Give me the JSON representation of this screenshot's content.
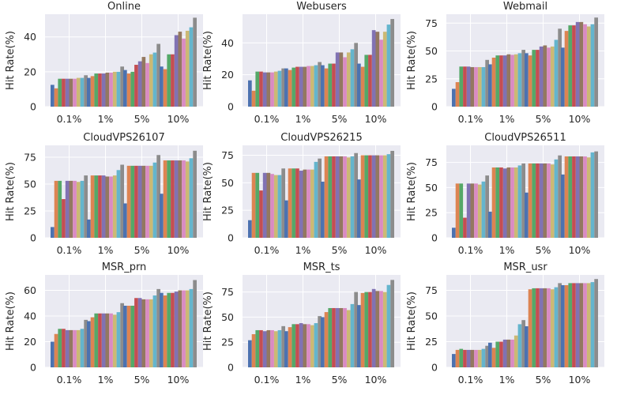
{
  "colors": [
    "#4c72b0",
    "#dd8452",
    "#55a868",
    "#c44e52",
    "#8172b3",
    "#937860",
    "#da8bc3",
    "#ccb974",
    "#64b5cd",
    "#8c8c8c"
  ],
  "chart_data": [
    {
      "type": "bar",
      "title": "Online",
      "ylabel": "Hit Rate(%)",
      "categories": [
        "0.1%",
        "1%",
        "5%",
        "10%"
      ],
      "ylim": [
        0,
        53
      ],
      "yticks": [
        0,
        20,
        40
      ],
      "grid": true,
      "values": [
        [
          12.5,
          10.5,
          16,
          16,
          16,
          16,
          16,
          16.5,
          16.5,
          18
        ],
        [
          16.5,
          17.5,
          19,
          19,
          19,
          19.5,
          19.5,
          20,
          20,
          23
        ],
        [
          21,
          19,
          20,
          24,
          26,
          28.5,
          25,
          30,
          31,
          36
        ],
        [
          23,
          21.5,
          30,
          30,
          41,
          43,
          39,
          43.5,
          45.5,
          51
        ]
      ]
    },
    {
      "type": "bar",
      "title": "Webusers",
      "ylabel": "Hit Rate(%)",
      "categories": [
        "0.1%",
        "1%",
        "5%",
        "10%"
      ],
      "ylim": [
        0,
        58
      ],
      "yticks": [
        0,
        20,
        40
      ],
      "grid": true,
      "values": [
        [
          16.5,
          10,
          22,
          22,
          21.5,
          21.5,
          21.5,
          22,
          22.5,
          24
        ],
        [
          24,
          23,
          24.5,
          25,
          25,
          25,
          25.5,
          25.5,
          26,
          28
        ],
        [
          26,
          24,
          27,
          27,
          34,
          34,
          31,
          34,
          36,
          40
        ],
        [
          27,
          25,
          32.5,
          32.5,
          48,
          47,
          42,
          47,
          51.5,
          55
        ]
      ]
    },
    {
      "type": "bar",
      "title": "Webmail",
      "ylabel": "Hit Rate(%)",
      "categories": [
        "0.1%",
        "1%",
        "5%",
        "10%"
      ],
      "ylim": [
        0,
        83
      ],
      "yticks": [
        0,
        25,
        50,
        75
      ],
      "grid": true,
      "values": [
        [
          16,
          22,
          36,
          36,
          36,
          35.5,
          35.5,
          35.5,
          35.5,
          42
        ],
        [
          38,
          44,
          46,
          46,
          46,
          47,
          46.5,
          47,
          48,
          51
        ],
        [
          48,
          46,
          51,
          51,
          54,
          55,
          53,
          54,
          60,
          70
        ],
        [
          53,
          68,
          73,
          73,
          76,
          76,
          74,
          72,
          74,
          80
        ]
      ]
    },
    {
      "type": "bar",
      "title": "CloudVPS26107",
      "ylabel": "Hit Rate(%)",
      "categories": [
        "0.1%",
        "1%",
        "5%",
        "10%"
      ],
      "ylim": [
        0,
        86
      ],
      "yticks": [
        0,
        25,
        50,
        75
      ],
      "grid": true,
      "values": [
        [
          10,
          53,
          53,
          36,
          53,
          53,
          53,
          52,
          53,
          58
        ],
        [
          17,
          58,
          58,
          58,
          58,
          57,
          57,
          58,
          63,
          68
        ],
        [
          32,
          67,
          67,
          67,
          67,
          67,
          67,
          67,
          70,
          77
        ],
        [
          41,
          72,
          72,
          72,
          72,
          72,
          72,
          71,
          74,
          81
        ]
      ]
    },
    {
      "type": "bar",
      "title": "CloudVPS26215",
      "ylabel": "Hit Rate(%)",
      "categories": [
        "0.1%",
        "1%",
        "5%",
        "10%"
      ],
      "ylim": [
        0,
        84
      ],
      "yticks": [
        0,
        25,
        50,
        75
      ],
      "grid": true,
      "values": [
        [
          16,
          59,
          59,
          43,
          59,
          59,
          58,
          57,
          57,
          63
        ],
        [
          34,
          63,
          63,
          63,
          61,
          62,
          62,
          62,
          69,
          72
        ],
        [
          51,
          74,
          74,
          74,
          74,
          74,
          74,
          73,
          74,
          77
        ],
        [
          53,
          75,
          75,
          75,
          75,
          75,
          75,
          75,
          76,
          79
        ]
      ]
    },
    {
      "type": "bar",
      "title": "CloudVPS26511",
      "ylabel": "Hit Rate(%)",
      "categories": [
        "0.1%",
        "1%",
        "5%",
        "10%"
      ],
      "ylim": [
        0,
        92
      ],
      "yticks": [
        0,
        25,
        50,
        75
      ],
      "grid": true,
      "values": [
        [
          10,
          54,
          54,
          20,
          54,
          54,
          54,
          53,
          56,
          62
        ],
        [
          26,
          70,
          70,
          70,
          69,
          70,
          70,
          70,
          72,
          74
        ],
        [
          45,
          74,
          74,
          74,
          74,
          74,
          74,
          73,
          78,
          82
        ],
        [
          63,
          81,
          81,
          81,
          81,
          81,
          81,
          80,
          85,
          86
        ]
      ]
    },
    {
      "type": "bar",
      "title": "MSR_prn",
      "ylabel": "Hit Rate(%)",
      "categories": [
        "0.1%",
        "1%",
        "5%",
        "10%"
      ],
      "ylim": [
        0,
        72
      ],
      "yticks": [
        0,
        20,
        40,
        60
      ],
      "grid": true,
      "values": [
        [
          20,
          26,
          30,
          30,
          29,
          29,
          29,
          29,
          30,
          37
        ],
        [
          36,
          39,
          42,
          42,
          42,
          42,
          42,
          41,
          43,
          50
        ],
        [
          48,
          48,
          48,
          54,
          54,
          53,
          53,
          53,
          56,
          61
        ],
        [
          58,
          56,
          58,
          58,
          59,
          60,
          60,
          60,
          61,
          68
        ]
      ]
    },
    {
      "type": "bar",
      "title": "MSR_ts",
      "ylabel": "Hit Rate(%)",
      "categories": [
        "0.1%",
        "1%",
        "5%",
        "10%"
      ],
      "ylim": [
        0,
        92
      ],
      "yticks": [
        0,
        25,
        50,
        75
      ],
      "grid": true,
      "values": [
        [
          27,
          33,
          37,
          37,
          36,
          37,
          37,
          36,
          37,
          41
        ],
        [
          36,
          40,
          43,
          43,
          44,
          43,
          43,
          42,
          44,
          51
        ],
        [
          50,
          55,
          59,
          59,
          59,
          59,
          59,
          57,
          63,
          75
        ],
        [
          62,
          74,
          75,
          75,
          78,
          76,
          76,
          75,
          82,
          87
        ]
      ]
    },
    {
      "type": "bar",
      "title": "MSR_usr",
      "ylabel": "Hit Rate(%)",
      "categories": [
        "0.1%",
        "1%",
        "5%",
        "10%"
      ],
      "ylim": [
        0,
        90
      ],
      "yticks": [
        0,
        25,
        50,
        75
      ],
      "grid": true,
      "values": [
        [
          13,
          17,
          18,
          17,
          17,
          17,
          17,
          17,
          18,
          21
        ],
        [
          24,
          19,
          25,
          25,
          27,
          27,
          27,
          31,
          42,
          46
        ],
        [
          40,
          76,
          77,
          77,
          77,
          77,
          77,
          76,
          78,
          82
        ],
        [
          80,
          80,
          82,
          82,
          82,
          82,
          82,
          82,
          83,
          86
        ]
      ]
    }
  ]
}
